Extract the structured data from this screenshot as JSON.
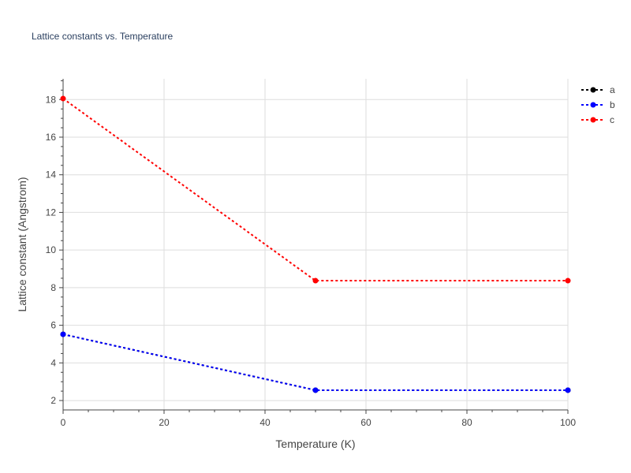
{
  "chart_data": {
    "type": "line",
    "title": "Lattice constants vs. Temperature",
    "xlabel": "Temperature (K)",
    "ylabel": "Lattice constant (Angstrom)",
    "xlim": [
      0,
      100
    ],
    "ylim": [
      1.5,
      19.1
    ],
    "x_ticks": [
      0,
      20,
      40,
      60,
      80,
      100
    ],
    "y_ticks": [
      2,
      4,
      6,
      8,
      10,
      12,
      14,
      16,
      18
    ],
    "grid": true,
    "legend_position": "top-right",
    "series": [
      {
        "name": "a",
        "color": "#000000",
        "x": [
          0,
          50,
          100
        ],
        "y": [
          5.52,
          2.55,
          2.55
        ]
      },
      {
        "name": "b",
        "color": "#0000ff",
        "x": [
          0,
          50,
          100
        ],
        "y": [
          5.52,
          2.55,
          2.55
        ]
      },
      {
        "name": "c",
        "color": "#ff0000",
        "x": [
          0,
          50,
          100
        ],
        "y": [
          18.05,
          8.37,
          8.37
        ]
      }
    ]
  }
}
